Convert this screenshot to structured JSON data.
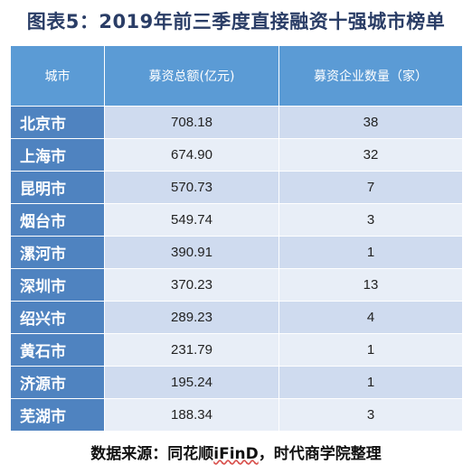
{
  "title": "图表5：2019年前三季度直接融资十强城市榜单",
  "table": {
    "headers": [
      "城市",
      "募资总额(亿元)",
      "募资企业数量（家）"
    ],
    "rows": [
      {
        "city": "北京市",
        "amount": "708.18",
        "count": "38"
      },
      {
        "city": "上海市",
        "amount": "674.90",
        "count": "32"
      },
      {
        "city": "昆明市",
        "amount": "570.73",
        "count": "7"
      },
      {
        "city": "烟台市",
        "amount": "549.74",
        "count": "3"
      },
      {
        "city": "漯河市",
        "amount": "390.91",
        "count": "1"
      },
      {
        "city": "深圳市",
        "amount": "370.23",
        "count": "13"
      },
      {
        "city": "绍兴市",
        "amount": "289.23",
        "count": "4"
      },
      {
        "city": "黄石市",
        "amount": "231.79",
        "count": "1"
      },
      {
        "city": "济源市",
        "amount": "195.24",
        "count": "1"
      },
      {
        "city": "芜湖市",
        "amount": "188.34",
        "count": "3"
      }
    ]
  },
  "source": {
    "prefix": "数据来源：同花顺",
    "brand": "iFinD",
    "suffix": "，时代商学院整理"
  },
  "colors": {
    "header_bg": "#5b9bd5",
    "city_bg": "#4f83c0",
    "row_odd": "#cfdbef",
    "row_even": "#e8eef7",
    "title_color": "#2a3d66"
  }
}
